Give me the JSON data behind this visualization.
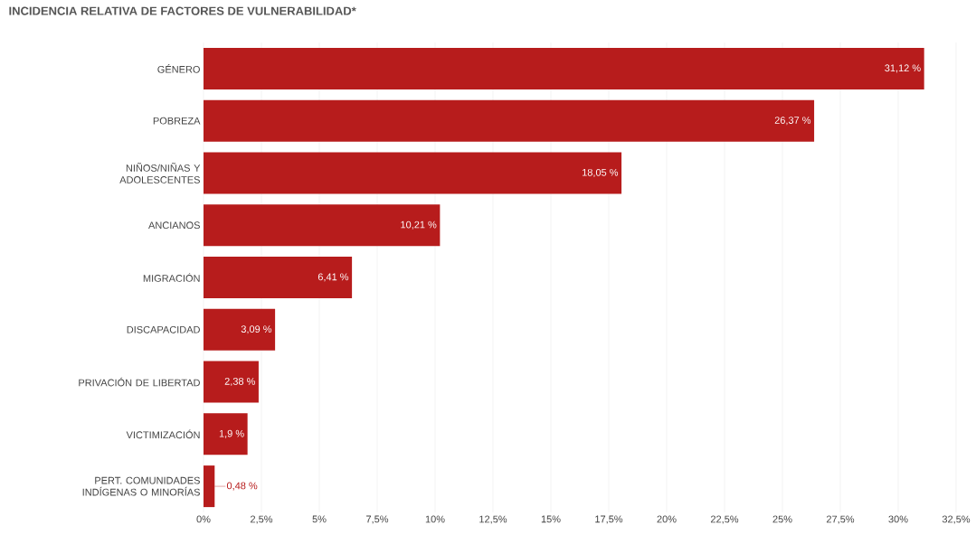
{
  "chart_data": {
    "type": "bar",
    "orientation": "horizontal",
    "title": "INCIDENCIA RELATIVA DE FACTORES DE VULNERABILIDAD*",
    "categories": [
      "GÉNERO",
      "POBREZA",
      "NIÑOS/NIÑAS Y ADOLESCENTES",
      "ANCIANOS",
      "MIGRACIÓN",
      "DISCAPACIDAD",
      "PRIVACIÓN DE LIBERTAD",
      "VICTIMIZACIÓN",
      "PERT. COMUNIDADES INDÍGENAS O MINORÍAS"
    ],
    "values": [
      31.12,
      26.37,
      18.05,
      10.21,
      6.41,
      3.09,
      2.38,
      1.9,
      0.48
    ],
    "value_labels": [
      "31,12 %",
      "26,37 %",
      "18,05 %",
      "10,21 %",
      "6,41 %",
      "3,09 %",
      "2,38 %",
      "1,9 %",
      "0,48 %"
    ],
    "color": "#b71c1c",
    "xlim": [
      0,
      32.5
    ],
    "xticks": [
      {
        "value": 0,
        "label": "0%"
      },
      {
        "value": 2.5,
        "label": "2,5%"
      },
      {
        "value": 5,
        "label": "5%"
      },
      {
        "value": 7.5,
        "label": "7,5%"
      },
      {
        "value": 10,
        "label": "10%"
      },
      {
        "value": 12.5,
        "label": "12,5%"
      },
      {
        "value": 15,
        "label": "15%"
      },
      {
        "value": 17.5,
        "label": "17,5%"
      },
      {
        "value": 20,
        "label": "20%"
      },
      {
        "value": 22.5,
        "label": "22,5%"
      },
      {
        "value": 25,
        "label": "25%"
      },
      {
        "value": 27.5,
        "label": "27,5%"
      },
      {
        "value": 30,
        "label": "30%"
      },
      {
        "value": 32.5,
        "label": "32,5%"
      }
    ],
    "grid": "x"
  }
}
